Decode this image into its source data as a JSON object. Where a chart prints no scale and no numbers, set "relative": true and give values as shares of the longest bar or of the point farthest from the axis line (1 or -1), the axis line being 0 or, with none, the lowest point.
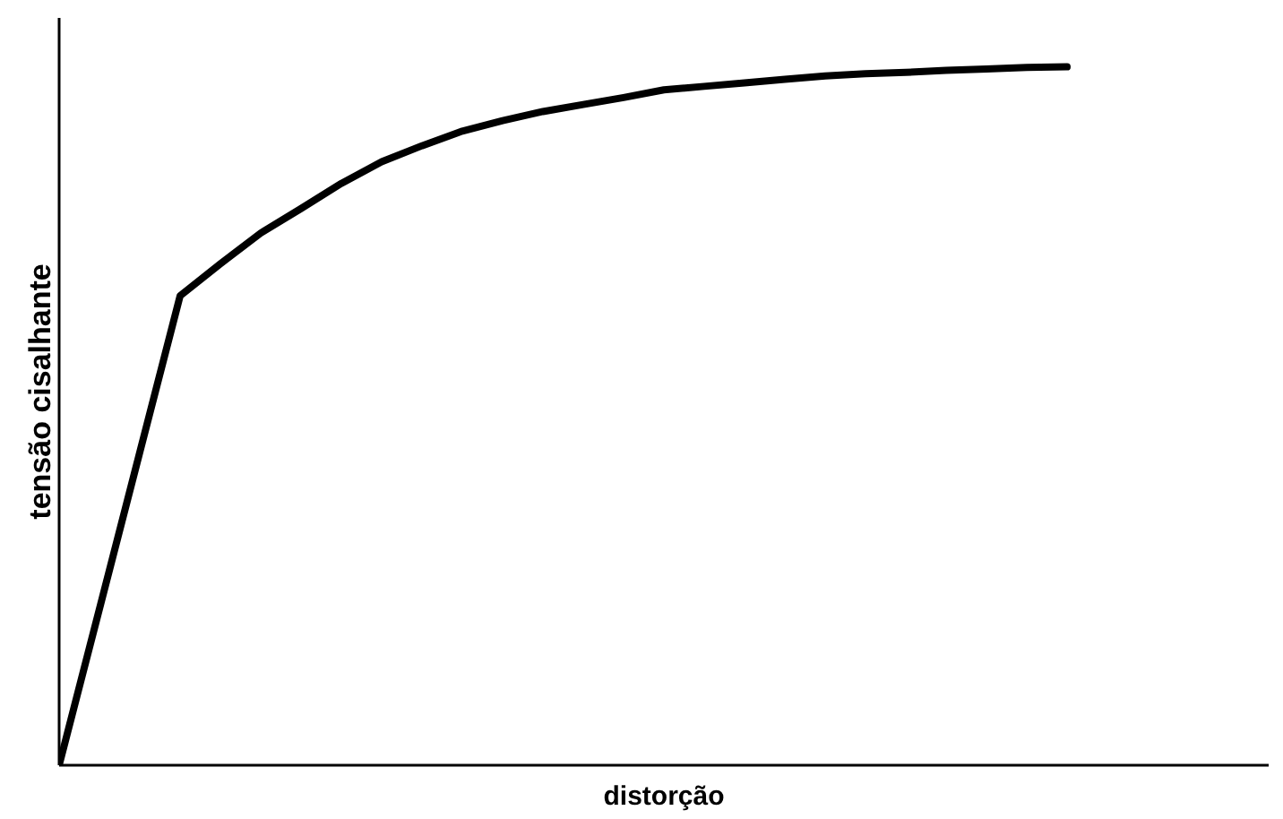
{
  "chart_data": {
    "type": "line",
    "relative": true,
    "xlabel": "distorção",
    "ylabel": "tensão cisalhante",
    "categories": [
      null,
      null,
      null,
      null,
      null,
      null,
      null,
      null,
      null,
      null,
      null,
      null,
      null,
      null,
      null,
      null,
      null,
      null,
      null,
      null,
      null,
      null,
      null,
      null,
      null,
      null,
      null,
      null,
      null,
      null,
      null
    ],
    "series": [
      {
        "color": "#000000",
        "values": [
          0,
          0.224,
          0.448,
          0.672,
          0.718,
          0.762,
          0.797,
          0.833,
          0.864,
          0.887,
          0.908,
          0.923,
          0.936,
          0.946,
          0.956,
          0.967,
          0.972,
          0.977,
          0.982,
          0.987,
          0.99,
          0.992,
          0.995,
          0.997,
          0.999,
          1,
          null,
          null,
          null,
          null,
          null
        ]
      }
    ],
    "grid": false,
    "legend": false,
    "marker": "none",
    "line_style": "solid"
  }
}
